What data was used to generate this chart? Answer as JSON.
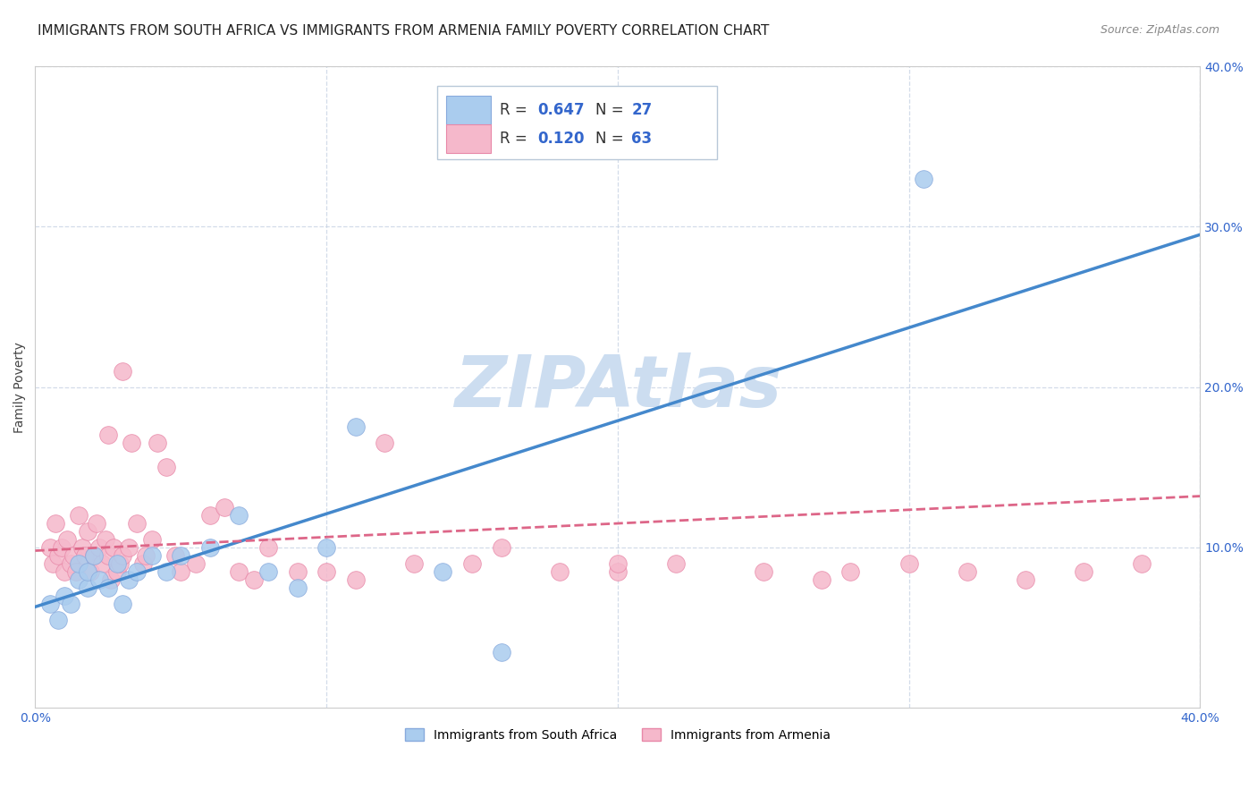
{
  "title": "IMMIGRANTS FROM SOUTH AFRICA VS IMMIGRANTS FROM ARMENIA FAMILY POVERTY CORRELATION CHART",
  "source": "Source: ZipAtlas.com",
  "ylabel": "Family Poverty",
  "xlim": [
    0.0,
    0.4
  ],
  "ylim": [
    0.0,
    0.4
  ],
  "background_color": "#ffffff",
  "watermark_text": "ZIPAtlas",
  "watermark_color": "#ccddf0",
  "south_africa_color": "#aaccee",
  "south_africa_edge": "#88aadd",
  "armenia_color": "#f5b8cb",
  "armenia_edge": "#e888a8",
  "south_africa_R": "0.647",
  "south_africa_N": "27",
  "armenia_R": "0.120",
  "armenia_N": "63",
  "legend_border_color": "#b8c8d8",
  "south_africa_x": [
    0.005,
    0.008,
    0.01,
    0.012,
    0.015,
    0.015,
    0.018,
    0.018,
    0.02,
    0.022,
    0.025,
    0.028,
    0.03,
    0.032,
    0.035,
    0.04,
    0.045,
    0.05,
    0.06,
    0.07,
    0.08,
    0.09,
    0.1,
    0.11,
    0.14,
    0.16,
    0.305
  ],
  "south_africa_y": [
    0.065,
    0.055,
    0.07,
    0.065,
    0.08,
    0.09,
    0.075,
    0.085,
    0.095,
    0.08,
    0.075,
    0.09,
    0.065,
    0.08,
    0.085,
    0.095,
    0.085,
    0.095,
    0.1,
    0.12,
    0.085,
    0.075,
    0.1,
    0.175,
    0.085,
    0.035,
    0.33
  ],
  "armenia_x": [
    0.005,
    0.006,
    0.007,
    0.008,
    0.009,
    0.01,
    0.011,
    0.012,
    0.013,
    0.014,
    0.015,
    0.016,
    0.017,
    0.018,
    0.019,
    0.02,
    0.021,
    0.022,
    0.023,
    0.024,
    0.025,
    0.026,
    0.027,
    0.028,
    0.029,
    0.03,
    0.032,
    0.033,
    0.035,
    0.037,
    0.038,
    0.04,
    0.042,
    0.045,
    0.048,
    0.05,
    0.055,
    0.06,
    0.065,
    0.07,
    0.075,
    0.08,
    0.09,
    0.1,
    0.11,
    0.12,
    0.13,
    0.15,
    0.16,
    0.18,
    0.2,
    0.22,
    0.25,
    0.27,
    0.28,
    0.3,
    0.32,
    0.34,
    0.36,
    0.38,
    0.03,
    0.025,
    0.2
  ],
  "armenia_y": [
    0.1,
    0.09,
    0.115,
    0.095,
    0.1,
    0.085,
    0.105,
    0.09,
    0.095,
    0.085,
    0.12,
    0.1,
    0.095,
    0.11,
    0.085,
    0.095,
    0.115,
    0.1,
    0.09,
    0.105,
    0.095,
    0.08,
    0.1,
    0.085,
    0.09,
    0.095,
    0.1,
    0.165,
    0.115,
    0.09,
    0.095,
    0.105,
    0.165,
    0.15,
    0.095,
    0.085,
    0.09,
    0.12,
    0.125,
    0.085,
    0.08,
    0.1,
    0.085,
    0.085,
    0.08,
    0.165,
    0.09,
    0.09,
    0.1,
    0.085,
    0.085,
    0.09,
    0.085,
    0.08,
    0.085,
    0.09,
    0.085,
    0.08,
    0.085,
    0.09,
    0.21,
    0.17,
    0.09
  ],
  "grid_color": "#c8d4e4",
  "grid_alpha": 0.8,
  "sa_line_x": [
    0.0,
    0.4
  ],
  "sa_line_y": [
    0.063,
    0.295
  ],
  "arm_line_x": [
    0.0,
    0.4
  ],
  "arm_line_y": [
    0.098,
    0.132
  ],
  "title_fontsize": 11,
  "axis_label_fontsize": 10,
  "tick_fontsize": 10,
  "legend_fontsize": 12
}
